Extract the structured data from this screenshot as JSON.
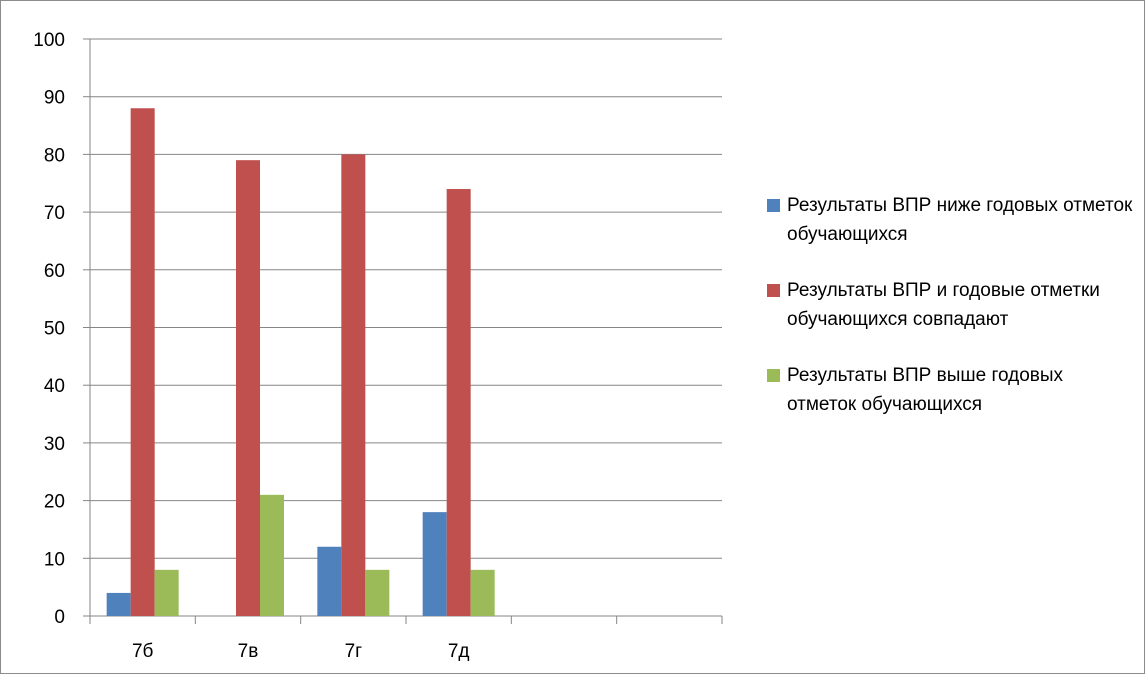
{
  "chart_data": {
    "type": "bar",
    "title": "",
    "xlabel": "",
    "ylabel": "",
    "ylim": [
      0,
      100
    ],
    "yticks": [
      0,
      10,
      20,
      30,
      40,
      50,
      60,
      70,
      80,
      90,
      100
    ],
    "grid": true,
    "legend_position": "right",
    "categories": [
      "7б",
      "7в",
      "7г",
      "7д",
      "",
      ""
    ],
    "series": [
      {
        "name": "Результаты ВПР ниже годовых отметок обучающихся",
        "color": "#4f81bd",
        "values": [
          4,
          0,
          12,
          18,
          null,
          null
        ]
      },
      {
        "name": "Результаты ВПР и годовые отметки обучающихся совпадают",
        "color": "#c0504d",
        "values": [
          88,
          79,
          80,
          74,
          null,
          null
        ]
      },
      {
        "name": "Результаты ВПР выше годовых отметок обучающихся",
        "color": "#9bbb59",
        "values": [
          8,
          21,
          8,
          8,
          null,
          null
        ]
      }
    ]
  }
}
